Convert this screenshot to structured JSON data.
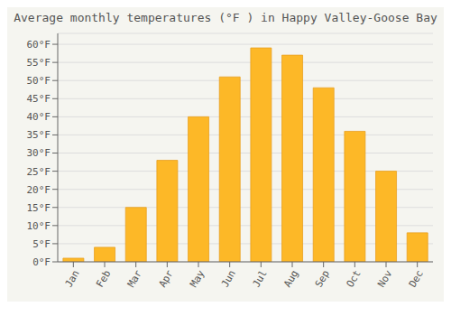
{
  "chart_data": {
    "type": "bar",
    "title": "Average monthly temperatures (°F ) in Happy Valley-Goose Bay",
    "categories": [
      "Jan",
      "Feb",
      "Mar",
      "Apr",
      "May",
      "Jun",
      "Jul",
      "Aug",
      "Sep",
      "Oct",
      "Nov",
      "Dec"
    ],
    "values": [
      1,
      4,
      15,
      28,
      40,
      51,
      59,
      57,
      48,
      36,
      25,
      8
    ],
    "color": "#FDB827",
    "ylim": [
      0,
      63
    ],
    "yticks": [
      {
        "value": 0,
        "label": "0°F"
      },
      {
        "value": 5,
        "label": "5°F"
      },
      {
        "value": 10,
        "label": "10°F"
      },
      {
        "value": 15,
        "label": "15°F"
      },
      {
        "value": 20,
        "label": "20°F"
      },
      {
        "value": 25,
        "label": "25°F"
      },
      {
        "value": 30,
        "label": "30°F"
      },
      {
        "value": 35,
        "label": "35°F"
      },
      {
        "value": 40,
        "label": "40°F"
      },
      {
        "value": 45,
        "label": "45°F"
      },
      {
        "value": 50,
        "label": "50°F"
      },
      {
        "value": 55,
        "label": "55°F"
      },
      {
        "value": 60,
        "label": "60°F"
      }
    ],
    "grid": true
  }
}
